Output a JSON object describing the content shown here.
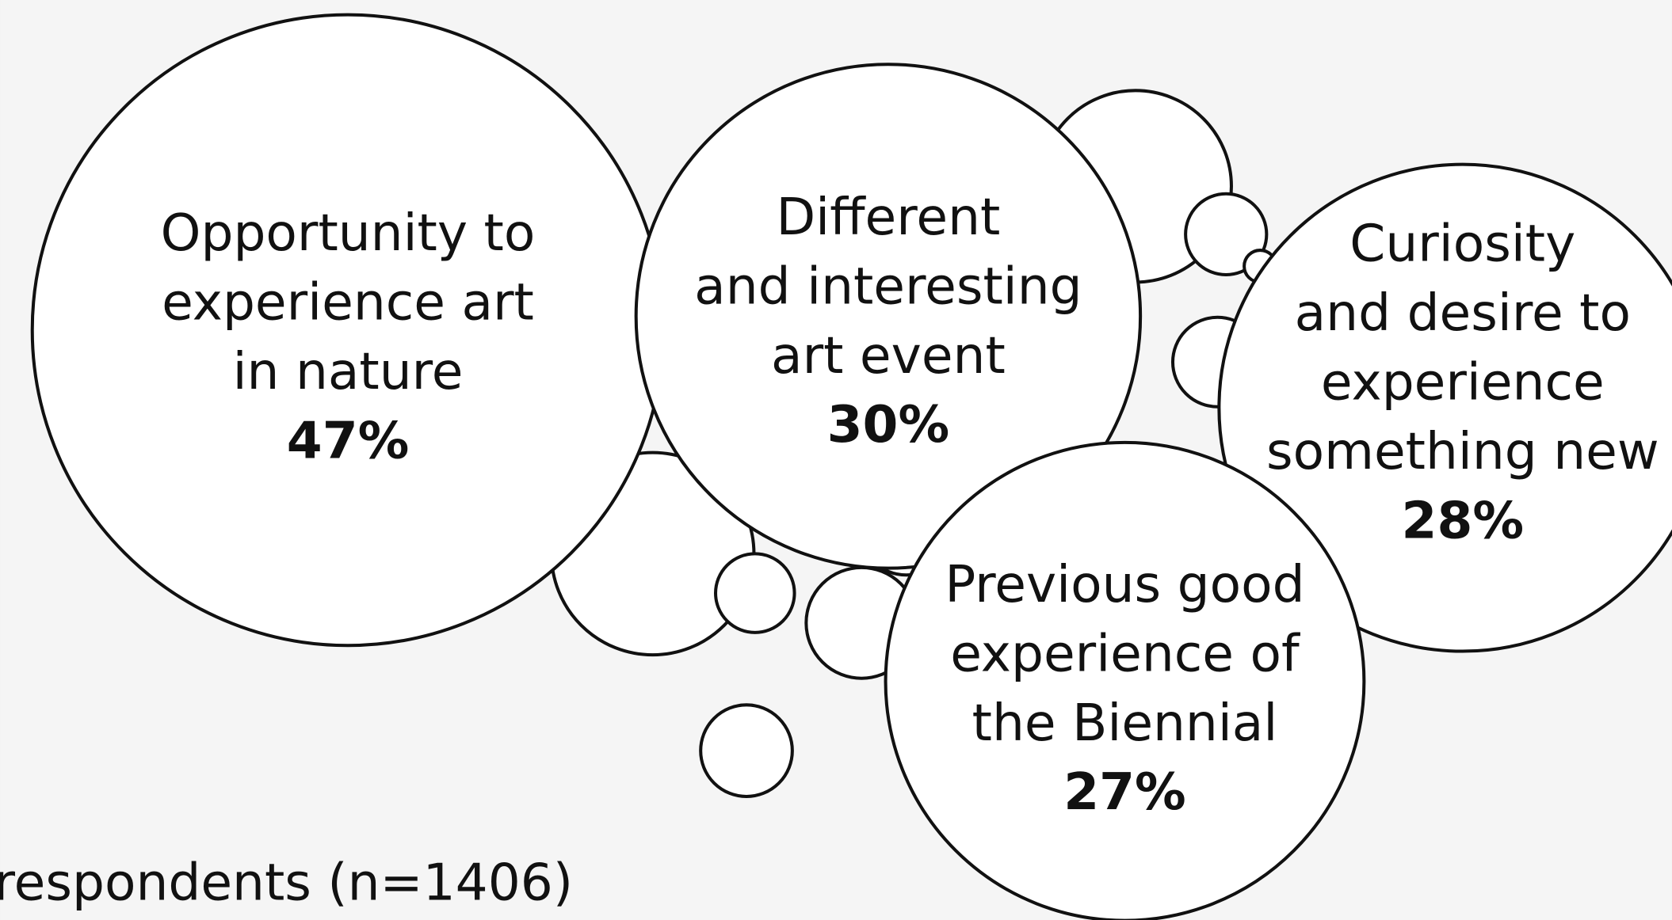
{
  "chart_data": {
    "type": "bubble",
    "categories": [
      [
        "Opportunity to",
        "experience art",
        "in nature"
      ],
      [
        "Different",
        "and interesting",
        "art event"
      ],
      [
        "Curiosity",
        "and desire to",
        "experience",
        "something new"
      ],
      [
        "Previous good",
        "experience of",
        "the Biennial"
      ]
    ],
    "values": [
      47,
      30,
      28,
      27
    ],
    "value_labels": [
      "47%",
      "30%",
      "28%",
      "27%"
    ],
    "note": "respondents (n=1406)"
  }
}
